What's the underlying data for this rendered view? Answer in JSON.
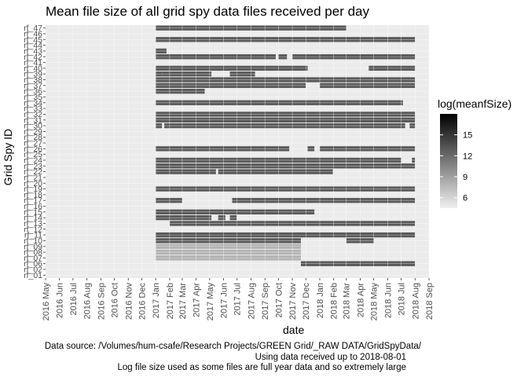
{
  "chart_data": {
    "type": "heatmap",
    "title": "Mean file size of all grid spy data files received per day",
    "xlabel": "date",
    "ylabel": "Grid Spy ID",
    "x_range": [
      "2016-05-01",
      "2018-09-01"
    ],
    "x_ticks": [
      "2016 May",
      "2016 Jun",
      "2016 Jul",
      "2016 Aug",
      "2016 Sep",
      "2016 Oct",
      "2016 Nov",
      "2016 Dec",
      "2017 Jan",
      "2017 Feb",
      "2017 Mar",
      "2017 Apr",
      "2017 May",
      "2017 Jun",
      "2017 Jul",
      "2017 Aug",
      "2017 Sep",
      "2017 Oct",
      "2017 Nov",
      "2017 Dec",
      "2018 Jan",
      "2018 Feb",
      "2018 Mar",
      "2018 Apr",
      "2018 May",
      "2018 Jun",
      "2018 Jul",
      "2018 Aug",
      "2018 Sep"
    ],
    "y_categories": [
      "rf_01",
      "rf_02",
      "rf_06",
      "rf_07",
      "rf_08",
      "rf_09",
      "rf_10",
      "rf_11",
      "rf_12",
      "rf_13",
      "rf_14",
      "rf_15",
      "rf_16",
      "rf_17",
      "rf_18",
      "rf_19",
      "rf_20",
      "rf_21",
      "rf_22",
      "rf_23",
      "rf_24",
      "rf_25",
      "rf_26",
      "rf_27",
      "rf_28",
      "rf_29",
      "rf_30",
      "rf_31",
      "rf_32",
      "rf_33",
      "rf_34",
      "rf_35",
      "rf_36",
      "rf_37",
      "rf_38",
      "rf_39",
      "rf_40",
      "rf_41",
      "rf_42",
      "rf_43",
      "rf_44",
      "rf_45",
      "rf_46",
      "rf_47"
    ],
    "legend": {
      "title": "log(meanfSize)",
      "ticks": [
        6,
        9,
        12,
        15
      ],
      "range": [
        4.5,
        18
      ],
      "low_color": "#f0f0f0",
      "high_color": "#000000"
    },
    "grid": true,
    "legend_position": "right",
    "series": [
      {
        "id": "rf_47",
        "value": 13,
        "ranges": [
          [
            "2017-01-01",
            "2018-03-01"
          ]
        ]
      },
      {
        "id": "rf_46",
        "value": 13,
        "ranges": []
      },
      {
        "id": "rf_45",
        "value": 13,
        "ranges": [
          [
            "2017-01-01",
            "2018-08-01"
          ]
        ]
      },
      {
        "id": "rf_44",
        "value": 13,
        "ranges": []
      },
      {
        "id": "rf_43",
        "value": 13,
        "ranges": [
          [
            "2017-01-01",
            "2017-01-25"
          ]
        ]
      },
      {
        "id": "rf_42",
        "value": 13,
        "ranges": [
          [
            "2017-01-01",
            "2017-09-25"
          ],
          [
            "2017-10-01",
            "2017-10-20"
          ],
          [
            "2017-11-01",
            "2018-08-01"
          ]
        ]
      },
      {
        "id": "rf_41",
        "value": 13,
        "ranges": []
      },
      {
        "id": "rf_40",
        "value": 13,
        "ranges": [
          [
            "2017-01-01",
            "2017-12-05"
          ],
          [
            "2018-04-20",
            "2018-08-01"
          ]
        ]
      },
      {
        "id": "rf_39",
        "value": 13,
        "ranges": [
          [
            "2017-01-01",
            "2017-01-15"
          ],
          [
            "2017-01-15",
            "2017-05-05"
          ],
          [
            "2017-06-15",
            "2017-08-10"
          ]
        ]
      },
      {
        "id": "rf_38",
        "value": 13,
        "ranges": [
          [
            "2017-01-01",
            "2018-08-01"
          ]
        ]
      },
      {
        "id": "rf_37",
        "value": 13,
        "ranges": [
          [
            "2017-01-01",
            "2017-12-01"
          ],
          [
            "2018-01-01",
            "2018-08-01"
          ]
        ]
      },
      {
        "id": "rf_36",
        "value": 13,
        "ranges": [
          [
            "2017-01-01",
            "2017-04-20"
          ]
        ]
      },
      {
        "id": "rf_35",
        "value": 13,
        "ranges": []
      },
      {
        "id": "rf_34",
        "value": 13,
        "ranges": [
          [
            "2017-01-01",
            "2018-07-05"
          ]
        ]
      },
      {
        "id": "rf_33",
        "value": 13,
        "ranges": []
      },
      {
        "id": "rf_32",
        "value": 13,
        "ranges": [
          [
            "2017-01-01",
            "2018-08-01"
          ]
        ]
      },
      {
        "id": "rf_31",
        "value": 13,
        "ranges": [
          [
            "2017-01-01",
            "2018-08-01"
          ]
        ]
      },
      {
        "id": "rf_30",
        "value": 13,
        "ranges": [
          [
            "2017-01-01",
            "2017-01-15"
          ],
          [
            "2017-01-20",
            "2018-07-10"
          ],
          [
            "2018-07-20",
            "2018-08-01"
          ]
        ]
      },
      {
        "id": "rf_29",
        "value": 13,
        "ranges": []
      },
      {
        "id": "rf_28",
        "value": 13,
        "ranges": []
      },
      {
        "id": "rf_27",
        "value": 13,
        "ranges": []
      },
      {
        "id": "rf_26",
        "value": 13,
        "ranges": [
          [
            "2017-01-01",
            "2017-10-25"
          ],
          [
            "2017-12-05",
            "2017-12-20"
          ],
          [
            "2018-01-01",
            "2018-08-01"
          ]
        ]
      },
      {
        "id": "rf_25",
        "value": 13,
        "ranges": []
      },
      {
        "id": "rf_24",
        "value": 13,
        "ranges": [
          [
            "2017-01-01",
            "2018-07-01"
          ],
          [
            "2018-07-25",
            "2018-08-01"
          ]
        ]
      },
      {
        "id": "rf_23",
        "value": 13,
        "ranges": [
          [
            "2017-01-01",
            "2018-08-01"
          ]
        ]
      },
      {
        "id": "rf_22",
        "value": 13,
        "ranges": [
          [
            "2017-01-01",
            "2017-05-15"
          ],
          [
            "2017-05-20",
            "2018-01-30"
          ]
        ]
      },
      {
        "id": "rf_21",
        "value": 13,
        "ranges": []
      },
      {
        "id": "rf_20",
        "value": 13,
        "ranges": []
      },
      {
        "id": "rf_19",
        "value": 13,
        "ranges": [
          [
            "2017-01-01",
            "2018-08-01"
          ]
        ]
      },
      {
        "id": "rf_18",
        "value": 13,
        "ranges": []
      },
      {
        "id": "rf_17",
        "value": 13,
        "ranges": [
          [
            "2017-01-01",
            "2017-03-01"
          ],
          [
            "2017-06-20",
            "2018-08-01"
          ]
        ]
      },
      {
        "id": "rf_16",
        "value": 13,
        "ranges": []
      },
      {
        "id": "rf_15",
        "value": 13,
        "ranges": [
          [
            "2017-01-01",
            "2017-12-20"
          ]
        ]
      },
      {
        "id": "rf_14",
        "value": 13,
        "ranges": [
          [
            "2017-01-01",
            "2017-05-05"
          ],
          [
            "2017-05-20",
            "2017-06-05"
          ],
          [
            "2017-06-15",
            "2017-06-30"
          ]
        ]
      },
      {
        "id": "rf_13",
        "value": 13,
        "ranges": [
          [
            "2017-02-01",
            "2018-08-01"
          ]
        ]
      },
      {
        "id": "rf_12",
        "value": 13,
        "ranges": []
      },
      {
        "id": "rf_11",
        "value": 13,
        "ranges": [
          [
            "2017-01-01",
            "2018-08-01"
          ]
        ]
      },
      {
        "id": "rf_10",
        "value": 13,
        "ranges": [
          [
            "2017-01-01",
            "2017-11-20"
          ],
          [
            "2018-03-01",
            "2018-05-01"
          ]
        ]
      },
      {
        "id": "rf_09",
        "value": 8,
        "ranges": [
          [
            "2017-01-01",
            "2017-11-20"
          ]
        ]
      },
      {
        "id": "rf_08",
        "value": 8,
        "ranges": [
          [
            "2017-01-01",
            "2017-11-20"
          ]
        ]
      },
      {
        "id": "rf_07",
        "value": 8,
        "ranges": [
          [
            "2017-01-01",
            "2017-11-20"
          ]
        ]
      },
      {
        "id": "rf_06",
        "value": 13,
        "ranges": [
          [
            "2017-11-20",
            "2018-08-01"
          ]
        ]
      },
      {
        "id": "rf_02",
        "value": 13,
        "ranges": []
      },
      {
        "id": "rf_01",
        "value": 13,
        "ranges": []
      }
    ]
  },
  "caption": {
    "line1": "Data source: /Volumes/hum-csafe/Research Projects/GREEN Grid/_RAW DATA/GridSpyData/",
    "line2": "Using data received up to 2018-08-01",
    "line3": "Log file size used as some files are full year data and so extremely large"
  }
}
